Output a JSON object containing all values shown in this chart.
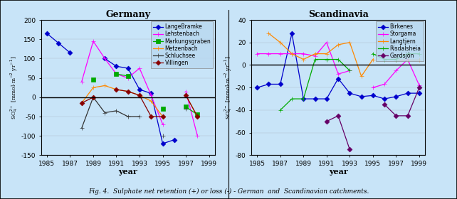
{
  "germany": {
    "title": "Germany",
    "years": [
      1985,
      1986,
      1987,
      1988,
      1989,
      1990,
      1991,
      1992,
      1993,
      1994,
      1995,
      1996,
      1997,
      1998
    ],
    "series": {
      "LangeBramke": {
        "color": "#0000CC",
        "marker": "D",
        "data": [
          165,
          140,
          115,
          null,
          null,
          100,
          80,
          75,
          20,
          10,
          -120,
          -110,
          null,
          null
        ]
      },
      "Lehstenbach": {
        "color": "#FF00FF",
        "marker": "+",
        "data": [
          null,
          null,
          null,
          40,
          145,
          100,
          60,
          50,
          75,
          5,
          -70,
          null,
          15,
          -100
        ]
      },
      "Markungsgraben": {
        "color": "#00AA00",
        "marker": "s",
        "data": [
          null,
          null,
          null,
          null,
          45,
          null,
          60,
          55,
          null,
          null,
          -30,
          null,
          -25,
          -45
        ]
      },
      "Metzenbach": {
        "color": "#FF8800",
        "marker": "+",
        "data": [
          null,
          null,
          null,
          -15,
          25,
          30,
          20,
          15,
          5,
          -10,
          -50,
          null,
          5,
          -50
        ]
      },
      "Schluchsee": {
        "color": "#333333",
        "marker": "+",
        "data": [
          null,
          null,
          null,
          -80,
          0,
          -40,
          -35,
          -50,
          -50,
          null,
          -100,
          null,
          -30,
          null
        ]
      },
      "Villingen": {
        "color": "#880000",
        "marker": "D",
        "data": [
          null,
          null,
          null,
          -15,
          0,
          null,
          20,
          15,
          5,
          -50,
          -50,
          null,
          5,
          -50
        ]
      }
    },
    "ylim": [
      -150,
      200
    ],
    "yticks": [
      -150,
      -100,
      -50,
      0,
      50,
      100,
      150,
      200
    ],
    "xlim": [
      1984.5,
      1999.5
    ],
    "xticks": [
      1985,
      1987,
      1989,
      1991,
      1993,
      1995,
      1997,
      1999
    ]
  },
  "scandinavia": {
    "title": "Scandinavia",
    "years": [
      1985,
      1986,
      1987,
      1988,
      1989,
      1990,
      1991,
      1992,
      1993,
      1994,
      1995,
      1996,
      1997,
      1998,
      1999
    ],
    "series": {
      "Birkenes": {
        "color": "#0000CC",
        "marker": "D",
        "data": [
          -20,
          -17,
          -17,
          28,
          -30,
          -30,
          -30,
          -12,
          -25,
          -28,
          -27,
          -30,
          -28,
          -25,
          -25
        ]
      },
      "Storgama": {
        "color": "#FF00FF",
        "marker": "+",
        "data": [
          10,
          10,
          10,
          10,
          10,
          8,
          20,
          -8,
          -5,
          null,
          -20,
          -17,
          -5,
          5,
          -18
        ]
      },
      "Langtjern": {
        "color": "#FF8800",
        "marker": "+",
        "data": [
          null,
          28,
          20,
          10,
          5,
          10,
          10,
          18,
          20,
          -10,
          5,
          null,
          5,
          5,
          5
        ]
      },
      "Risdalsheia": {
        "color": "#00AA00",
        "marker": "+",
        "data": [
          null,
          null,
          -40,
          -30,
          -30,
          5,
          5,
          5,
          -5,
          null,
          10,
          5,
          5,
          10,
          10
        ]
      },
      "Gardsjön": {
        "color": "#660066",
        "marker": "D",
        "data": [
          null,
          null,
          null,
          null,
          null,
          null,
          -50,
          -45,
          -75,
          null,
          null,
          -35,
          -45,
          -45,
          -20
        ]
      }
    },
    "ylim": [
      -80,
      40
    ],
    "yticks": [
      -80,
      -60,
      -40,
      -20,
      0,
      20,
      40
    ],
    "xlim": [
      1984.5,
      1999.5
    ],
    "xticks": [
      1985,
      1987,
      1989,
      1991,
      1993,
      1995,
      1997,
      1999
    ]
  },
  "fig_caption": "Fig. 4.  Sulphate net retention (+) or loss (-) - German  and  Scandinavian catchments.",
  "background_color": "#C8E4F8",
  "plot_bg_color": "#C8E4F8",
  "legend_bg": "#B8D8F0"
}
